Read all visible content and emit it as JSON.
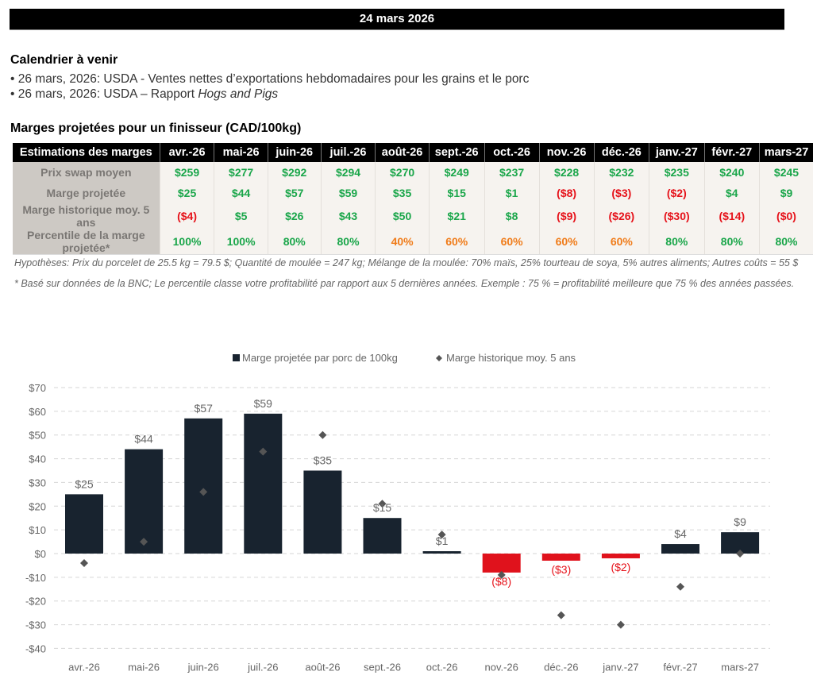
{
  "banner": {
    "date": "24 mars 2026"
  },
  "calendar": {
    "title": "Calendrier à venir",
    "items": [
      {
        "prefix": "• 26 mars, 2026: USDA - Ventes nettes d’exportations hebdomadaires pour les grains et le porc",
        "italic": ""
      },
      {
        "prefix": "• 26 mars, 2026: USDA – Rapport ",
        "italic": "Hogs and Pigs"
      }
    ]
  },
  "table": {
    "title": "Marges projetées pour un finisseur (CAD/100kg)",
    "header_label": "Estimations des marges",
    "columns": [
      "avr.-26",
      "mai-26",
      "juin-26",
      "juil.-26",
      "août-26",
      "sept.-26",
      "oct.-26",
      "nov.-26",
      "déc.-26",
      "janv.-27",
      "févr.-27",
      "mars-27"
    ],
    "rows": [
      {
        "label": "Prix swap moyen",
        "values": [
          "$259",
          "$277",
          "$292",
          "$294",
          "$270",
          "$249",
          "$237",
          "$228",
          "$232",
          "$235",
          "$240",
          "$245"
        ],
        "colors": [
          "pos",
          "pos",
          "pos",
          "pos",
          "pos",
          "pos",
          "pos",
          "pos",
          "pos",
          "pos",
          "pos",
          "pos"
        ]
      },
      {
        "label": "Marge projetée",
        "values": [
          "$25",
          "$44",
          "$57",
          "$59",
          "$35",
          "$15",
          "$1",
          "($8)",
          "($3)",
          "($2)",
          "$4",
          "$9"
        ],
        "colors": [
          "pos",
          "pos",
          "pos",
          "pos",
          "pos",
          "pos",
          "pos",
          "neg",
          "neg",
          "neg",
          "pos",
          "pos"
        ]
      },
      {
        "label": "Marge historique moy. 5 ans",
        "values": [
          "($4)",
          "$5",
          "$26",
          "$43",
          "$50",
          "$21",
          "$8",
          "($9)",
          "($26)",
          "($30)",
          "($14)",
          "($0)"
        ],
        "colors": [
          "neg",
          "pos",
          "pos",
          "pos",
          "pos",
          "pos",
          "pos",
          "neg",
          "neg",
          "neg",
          "neg",
          "neg"
        ]
      },
      {
        "label": "Percentile de la marge projetée*",
        "values": [
          "100%",
          "100%",
          "80%",
          "80%",
          "40%",
          "60%",
          "60%",
          "60%",
          "60%",
          "80%",
          "80%",
          "80%"
        ],
        "colors": [
          "pos",
          "pos",
          "pos",
          "pos",
          "orange",
          "orange",
          "orange",
          "orange",
          "orange",
          "pos",
          "pos",
          "pos"
        ]
      }
    ],
    "notes": [
      "Hypothèses: Prix du porcelet de 25.5 kg = 79.5 $; Quantité de moulée = 247 kg; Mélange de la moulée: 70% maïs, 25% tourteau de soya, 5% autres aliments; Autres coûts = 55 $",
      "* Basé sur données de la BNC; Le percentile classe votre profitabilité par rapport aux 5 dernières années. Exemple : 75 % = profitabilité meilleure que 75 % des années passées."
    ]
  },
  "chart_data": {
    "type": "bar",
    "title": "",
    "xlabel": "",
    "ylabel": "",
    "categories": [
      "avr.-26",
      "mai-26",
      "juin-26",
      "juil.-26",
      "août-26",
      "sept.-26",
      "oct.-26",
      "nov.-26",
      "déc.-26",
      "janv.-27",
      "févr.-27",
      "mars-27"
    ],
    "series": [
      {
        "name": "Marge projetée par porc de 100kg",
        "kind": "bar",
        "values": [
          25,
          44,
          57,
          59,
          35,
          15,
          1,
          -8,
          -3,
          -2,
          4,
          9
        ],
        "labels": [
          "$25",
          "$44",
          "$57",
          "$59",
          "$35",
          "$15",
          "$1",
          "($8)",
          "($3)",
          "($2)",
          "$4",
          "$9"
        ],
        "color_positive": "#18232f",
        "color_negative": "#e0121c"
      },
      {
        "name": "Marge historique moy. 5 ans",
        "kind": "scatter",
        "marker": "diamond",
        "values": [
          -4,
          5,
          26,
          43,
          50,
          21,
          8,
          -9,
          -26,
          -30,
          -14,
          0
        ],
        "color": "#555555"
      }
    ],
    "ylim": [
      -40,
      70
    ],
    "yticks": [
      70,
      60,
      50,
      40,
      30,
      20,
      10,
      0,
      -10,
      -20,
      -30,
      -40
    ],
    "ytick_labels": [
      "$70",
      "$60",
      "$50",
      "$40",
      "$30",
      "$20",
      "$10",
      "$0",
      "-$10",
      "-$20",
      "-$30",
      "-$40"
    ],
    "grid": true,
    "legend_position": "top-center",
    "label_color_positive": "#666666",
    "label_color_negative": "#e6121a"
  }
}
